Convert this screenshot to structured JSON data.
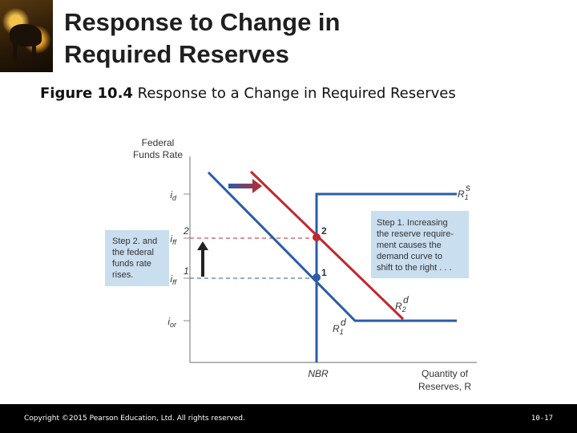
{
  "slide": {
    "title_line1": "Response to Change in",
    "title_line2": "Required Reserves",
    "figure_label": "Figure 10.4",
    "figure_caption": " Response to a Change in Required Reserves"
  },
  "chart_data": {
    "type": "line",
    "ylabel": [
      "Federal",
      "Funds Rate"
    ],
    "xlabel": [
      "Quantity of",
      "Reserves, R"
    ],
    "x_axis_label": "NBR",
    "y_ticks": {
      "id": "i",
      "id_sub": "d",
      "iff2": "i",
      "iff2_sub": "ff",
      "iff2_sup": "2",
      "iff1": "i",
      "iff1_sub": "ff",
      "iff1_sup": "1",
      "ior": "i",
      "ior_sub": "or"
    },
    "series": [
      {
        "name": "R",
        "sub": "1",
        "sup": "s",
        "color": "#2a5ca8"
      },
      {
        "name": "R",
        "sub": "1",
        "sup": "d",
        "color": "#2a5ca8"
      },
      {
        "name": "R",
        "sub": "2",
        "sup": "d",
        "color": "#c0282d"
      }
    ],
    "points": [
      {
        "label": "1",
        "color": "#2a5ca8"
      },
      {
        "label": "2",
        "color": "#c0282d"
      }
    ],
    "annotations": {
      "step1": [
        "Step 1. Increasing",
        "the reserve require-",
        "ment causes the",
        "demand curve to",
        "shift to the right . . ."
      ],
      "step2": [
        "Step 2. and",
        "the federal",
        "funds rate",
        "rises."
      ]
    }
  },
  "footer": {
    "copyright": "Copyright ©2015 Pearson Education, Ltd. All rights reserved.",
    "page": "10-17"
  }
}
